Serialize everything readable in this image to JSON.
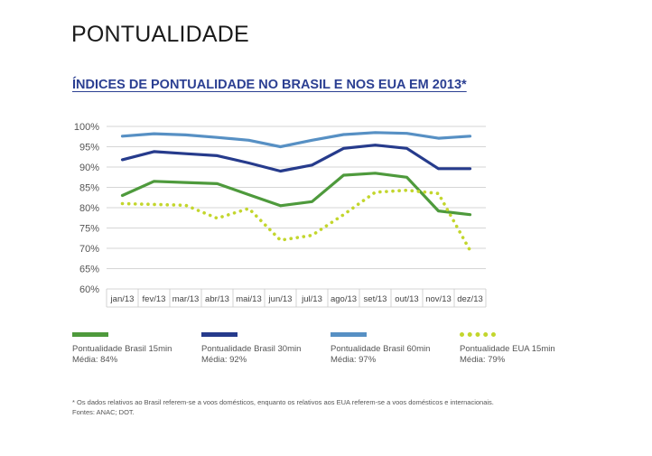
{
  "page": {
    "title": "PONTUALIDADE",
    "footnote": "* Os dados relativos ao Brasil referem-se a voos domésticos, enquanto os relativos aos EUA referem-se a voos domésticos e internacionais.",
    "sources": "Fontes: ANAC; DOT."
  },
  "chart_data": {
    "type": "line",
    "title": "ÍNDICES DE PONTUALIDADE NO BRASIL E NOS EUA EM 2013*",
    "categories": [
      "jan/13",
      "fev/13",
      "mar/13",
      "abr/13",
      "mai/13",
      "jun/13",
      "jul/13",
      "ago/13",
      "set/13",
      "out/13",
      "nov/13",
      "dez/13"
    ],
    "y_ticks": [
      "100%",
      "95%",
      "90%",
      "85%",
      "80%",
      "75%",
      "70%",
      "65%",
      "60%"
    ],
    "ylim": [
      60,
      100
    ],
    "grid": true,
    "legend_position": "bottom",
    "series": [
      {
        "name": "Pontualidade Brasil 15min",
        "average": "Média: 84%",
        "color": "#4e9a3c",
        "style": "solid",
        "values": [
          83,
          86.5,
          86.2,
          85.9,
          83.2,
          80.5,
          81.5,
          88,
          88.5,
          87.5,
          79.2,
          78.3
        ]
      },
      {
        "name": "Pontualidade Brasil 30min",
        "average": "Média: 92%",
        "color": "#263b8c",
        "style": "solid",
        "values": [
          91.8,
          93.8,
          93.3,
          92.8,
          91,
          89,
          90.5,
          94.6,
          95.4,
          94.6,
          89.6,
          89.6
        ]
      },
      {
        "name": "Pontualidade Brasil 60min",
        "average": "Média: 97%",
        "color": "#5790c4",
        "style": "solid",
        "values": [
          97.6,
          98.2,
          97.9,
          97.3,
          96.6,
          95,
          96.6,
          98,
          98.5,
          98.3,
          97.1,
          97.6
        ]
      },
      {
        "name": "Pontualidade EUA 15min",
        "average": "Média: 79%",
        "color": "#c3d62d",
        "style": "dotted",
        "values": [
          81,
          80.8,
          80.6,
          77.4,
          79.8,
          72,
          73.2,
          78.3,
          83.8,
          84.3,
          83.5,
          69.5
        ]
      }
    ]
  }
}
